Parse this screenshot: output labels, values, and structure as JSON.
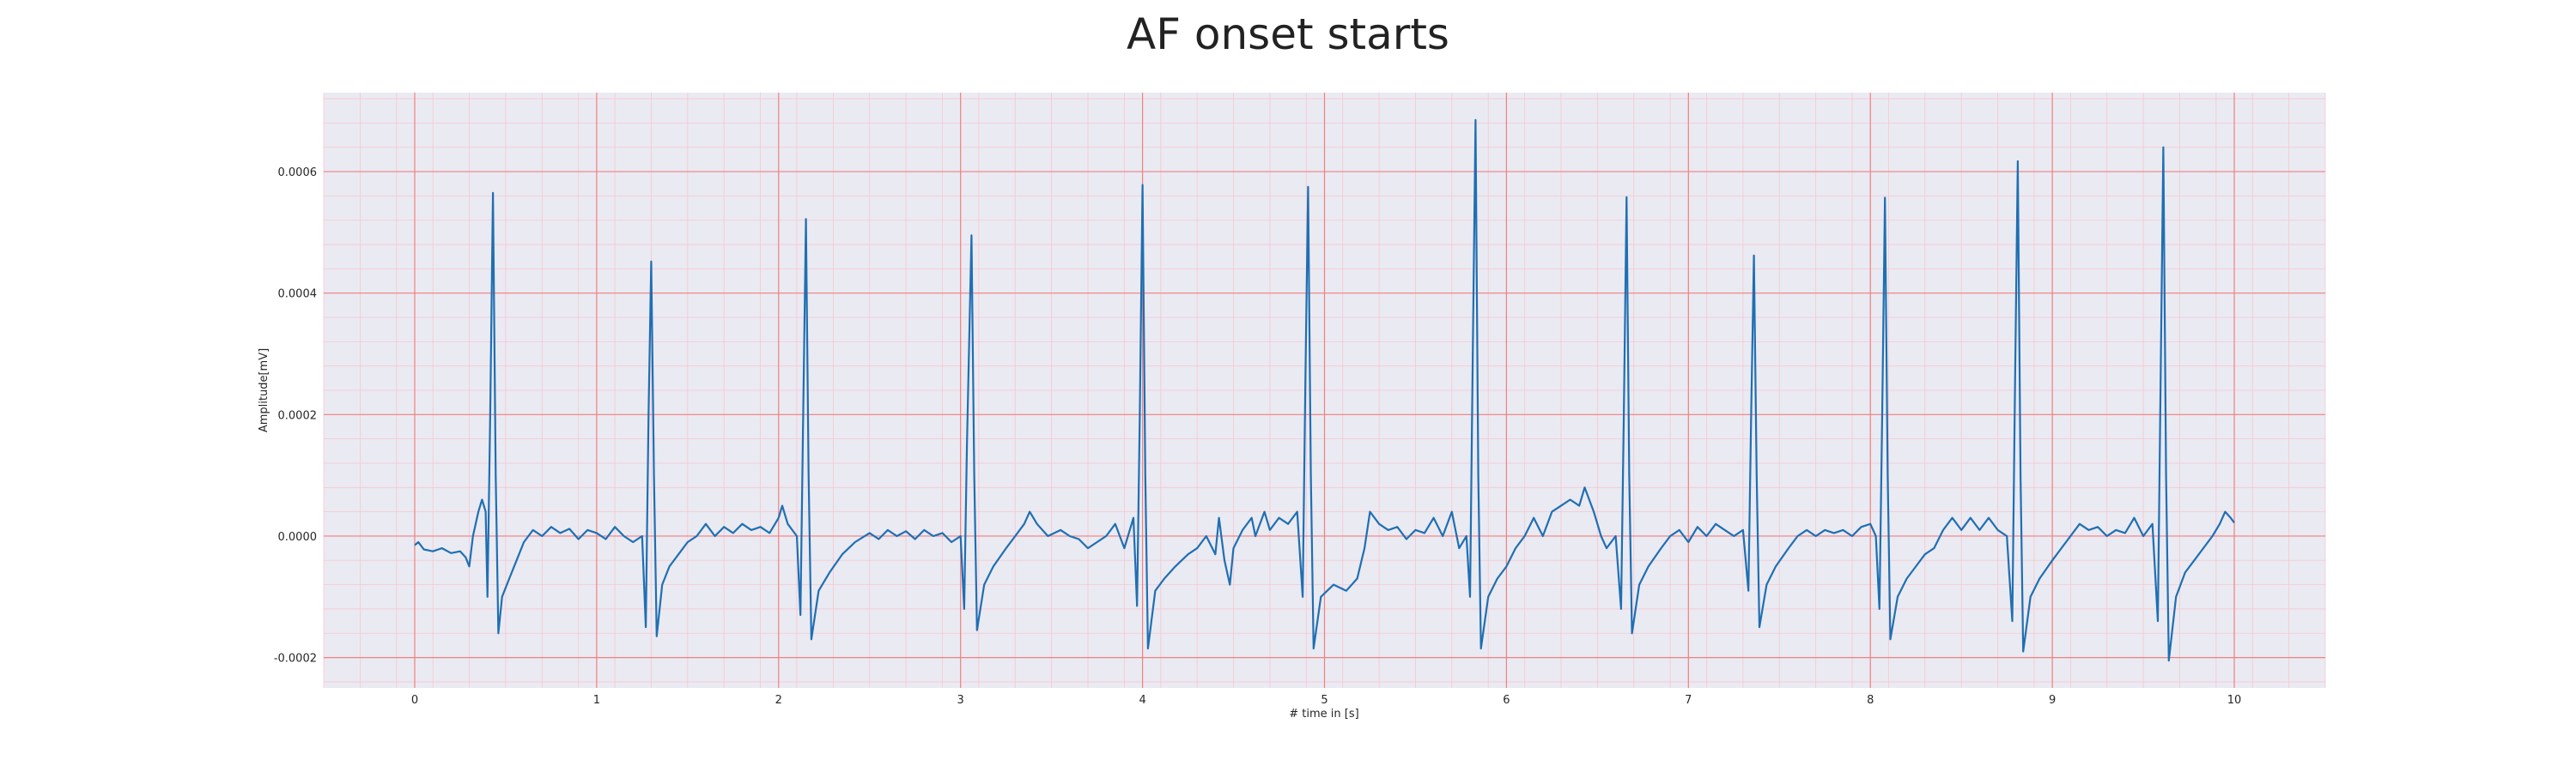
{
  "chart_data": {
    "type": "line",
    "title": "AF onset starts",
    "xlabel": "# time in [s]",
    "ylabel": "Amplitude[mV]",
    "xlim": [
      -0.5,
      10.5
    ],
    "ylim": [
      -0.00025,
      0.00073
    ],
    "x_ticks": [
      0,
      1,
      2,
      3,
      4,
      5,
      6,
      7,
      8,
      9,
      10
    ],
    "x_tick_labels": [
      "0",
      "1",
      "2",
      "3",
      "4",
      "5",
      "6",
      "7",
      "8",
      "9",
      "10"
    ],
    "y_ticks": [
      -0.0002,
      0.0,
      0.0002,
      0.0004,
      0.0006
    ],
    "y_tick_labels": [
      "-0.0002",
      "0.0000",
      "0.0002",
      "0.0004",
      "0.0006"
    ],
    "grid": true,
    "minor_grid": true,
    "colors": {
      "line": "#1f6fb2",
      "plot_background": "#eaeaf2",
      "major_grid": "#f08080",
      "minor_grid": "#f7c6d0"
    },
    "series": [
      {
        "name": "",
        "points": [
          [
            0.0,
            -1.5e-05
          ],
          [
            0.02,
            -1e-05
          ],
          [
            0.05,
            -2.2e-05
          ],
          [
            0.1,
            -2.5e-05
          ],
          [
            0.15,
            -2e-05
          ],
          [
            0.2,
            -2.8e-05
          ],
          [
            0.25,
            -2.5e-05
          ],
          [
            0.28,
            -3.5e-05
          ],
          [
            0.3,
            -5e-05
          ],
          [
            0.32,
            0.0
          ],
          [
            0.35,
            4e-05
          ],
          [
            0.37,
            6e-05
          ],
          [
            0.39,
            4e-05
          ],
          [
            0.4,
            -0.0001
          ],
          [
            0.415,
            0.0002
          ],
          [
            0.43,
            0.000565
          ],
          [
            0.445,
            0.0001
          ],
          [
            0.46,
            -0.00016
          ],
          [
            0.48,
            -0.0001
          ],
          [
            0.52,
            -7e-05
          ],
          [
            0.56,
            -4e-05
          ],
          [
            0.6,
            -1e-05
          ],
          [
            0.65,
            1e-05
          ],
          [
            0.7,
            0.0
          ],
          [
            0.75,
            1.5e-05
          ],
          [
            0.8,
            5e-06
          ],
          [
            0.85,
            1.2e-05
          ],
          [
            0.9,
            -5e-06
          ],
          [
            0.95,
            1e-05
          ],
          [
            1.0,
            5e-06
          ],
          [
            1.05,
            -5e-06
          ],
          [
            1.1,
            1.5e-05
          ],
          [
            1.15,
            0.0
          ],
          [
            1.2,
            -1e-05
          ],
          [
            1.25,
            0.0
          ],
          [
            1.27,
            -0.00015
          ],
          [
            1.285,
            0.0002
          ],
          [
            1.3,
            0.000452
          ],
          [
            1.315,
            0.0001
          ],
          [
            1.33,
            -0.000165
          ],
          [
            1.36,
            -8e-05
          ],
          [
            1.4,
            -5e-05
          ],
          [
            1.45,
            -3e-05
          ],
          [
            1.5,
            -1e-05
          ],
          [
            1.55,
            0.0
          ],
          [
            1.6,
            2e-05
          ],
          [
            1.65,
            0.0
          ],
          [
            1.7,
            1.5e-05
          ],
          [
            1.75,
            5e-06
          ],
          [
            1.8,
            2e-05
          ],
          [
            1.85,
            1e-05
          ],
          [
            1.9,
            1.5e-05
          ],
          [
            1.95,
            5e-06
          ],
          [
            2.0,
            3e-05
          ],
          [
            2.02,
            5e-05
          ],
          [
            2.05,
            2e-05
          ],
          [
            2.1,
            0.0
          ],
          [
            2.12,
            -0.00013
          ],
          [
            2.135,
            0.0002
          ],
          [
            2.15,
            0.000522
          ],
          [
            2.165,
            0.0001
          ],
          [
            2.18,
            -0.00017
          ],
          [
            2.22,
            -9e-05
          ],
          [
            2.28,
            -6e-05
          ],
          [
            2.35,
            -3e-05
          ],
          [
            2.42,
            -1e-05
          ],
          [
            2.5,
            5e-06
          ],
          [
            2.55,
            -5e-06
          ],
          [
            2.6,
            1e-05
          ],
          [
            2.65,
            0.0
          ],
          [
            2.7,
            8e-06
          ],
          [
            2.75,
            -5e-06
          ],
          [
            2.8,
            1e-05
          ],
          [
            2.85,
            0.0
          ],
          [
            2.9,
            5e-06
          ],
          [
            2.95,
            -1e-05
          ],
          [
            3.0,
            0.0
          ],
          [
            3.02,
            -0.00012
          ],
          [
            3.035,
            0.00015
          ],
          [
            3.06,
            0.000495
          ],
          [
            3.075,
            0.0001
          ],
          [
            3.09,
            -0.000155
          ],
          [
            3.13,
            -8e-05
          ],
          [
            3.18,
            -5e-05
          ],
          [
            3.25,
            -2e-05
          ],
          [
            3.3,
            0.0
          ],
          [
            3.35,
            2e-05
          ],
          [
            3.38,
            4e-05
          ],
          [
            3.42,
            2e-05
          ],
          [
            3.48,
            0.0
          ],
          [
            3.55,
            1e-05
          ],
          [
            3.6,
            0.0
          ],
          [
            3.65,
            -5e-06
          ],
          [
            3.7,
            -2e-05
          ],
          [
            3.75,
            -1e-05
          ],
          [
            3.8,
            0.0
          ],
          [
            3.85,
            2e-05
          ],
          [
            3.9,
            -2e-05
          ],
          [
            3.95,
            3e-05
          ],
          [
            3.97,
            -0.000115
          ],
          [
            3.985,
            0.0002
          ],
          [
            4.0,
            0.000578
          ],
          [
            4.015,
            0.0001
          ],
          [
            4.03,
            -0.000185
          ],
          [
            4.07,
            -9e-05
          ],
          [
            4.12,
            -7e-05
          ],
          [
            4.18,
            -5e-05
          ],
          [
            4.25,
            -3e-05
          ],
          [
            4.3,
            -2e-05
          ],
          [
            4.35,
            0.0
          ],
          [
            4.4,
            -3e-05
          ],
          [
            4.42,
            3e-05
          ],
          [
            4.45,
            -4e-05
          ],
          [
            4.48,
            -8e-05
          ],
          [
            4.5,
            -2e-05
          ],
          [
            4.55,
            1e-05
          ],
          [
            4.6,
            3e-05
          ],
          [
            4.62,
            0.0
          ],
          [
            4.67,
            4e-05
          ],
          [
            4.7,
            1e-05
          ],
          [
            4.75,
            3e-05
          ],
          [
            4.8,
            2e-05
          ],
          [
            4.85,
            4e-05
          ],
          [
            4.88,
            -0.0001
          ],
          [
            4.895,
            0.00025
          ],
          [
            4.91,
            0.000575
          ],
          [
            4.925,
            0.0001
          ],
          [
            4.94,
            -0.000185
          ],
          [
            4.98,
            -0.0001
          ],
          [
            5.05,
            -8e-05
          ],
          [
            5.12,
            -9e-05
          ],
          [
            5.18,
            -7e-05
          ],
          [
            5.22,
            -2e-05
          ],
          [
            5.25,
            4e-05
          ],
          [
            5.3,
            2e-05
          ],
          [
            5.35,
            1e-05
          ],
          [
            5.4,
            1.5e-05
          ],
          [
            5.45,
            -5e-06
          ],
          [
            5.5,
            1e-05
          ],
          [
            5.55,
            5e-06
          ],
          [
            5.6,
            3e-05
          ],
          [
            5.65,
            0.0
          ],
          [
            5.7,
            4e-05
          ],
          [
            5.74,
            -2e-05
          ],
          [
            5.78,
            0.0
          ],
          [
            5.8,
            -0.0001
          ],
          [
            5.815,
            0.0003
          ],
          [
            5.83,
            0.000685
          ],
          [
            5.845,
            0.0001
          ],
          [
            5.86,
            -0.000185
          ],
          [
            5.9,
            -0.0001
          ],
          [
            5.95,
            -7e-05
          ],
          [
            6.0,
            -5e-05
          ],
          [
            6.05,
            -2e-05
          ],
          [
            6.1,
            0.0
          ],
          [
            6.15,
            3e-05
          ],
          [
            6.2,
            0.0
          ],
          [
            6.25,
            4e-05
          ],
          [
            6.3,
            5e-05
          ],
          [
            6.35,
            6e-05
          ],
          [
            6.4,
            5e-05
          ],
          [
            6.43,
            8e-05
          ],
          [
            6.48,
            4e-05
          ],
          [
            6.52,
            0.0
          ],
          [
            6.55,
            -2e-05
          ],
          [
            6.6,
            0.0
          ],
          [
            6.63,
            -0.00012
          ],
          [
            6.645,
            0.0002
          ],
          [
            6.66,
            0.000558
          ],
          [
            6.675,
            0.0001
          ],
          [
            6.69,
            -0.00016
          ],
          [
            6.73,
            -8e-05
          ],
          [
            6.78,
            -5e-05
          ],
          [
            6.85,
            -2e-05
          ],
          [
            6.9,
            0.0
          ],
          [
            6.95,
            1e-05
          ],
          [
            7.0,
            -1e-05
          ],
          [
            7.05,
            1.5e-05
          ],
          [
            7.1,
            0.0
          ],
          [
            7.15,
            2e-05
          ],
          [
            7.2,
            1e-05
          ],
          [
            7.25,
            0.0
          ],
          [
            7.3,
            1e-05
          ],
          [
            7.33,
            -9e-05
          ],
          [
            7.345,
            0.0002
          ],
          [
            7.36,
            0.000462
          ],
          [
            7.375,
            0.0001
          ],
          [
            7.39,
            -0.00015
          ],
          [
            7.43,
            -8e-05
          ],
          [
            7.48,
            -5e-05
          ],
          [
            7.55,
            -2e-05
          ],
          [
            7.6,
            0.0
          ],
          [
            7.65,
            1e-05
          ],
          [
            7.7,
            0.0
          ],
          [
            7.75,
            1e-05
          ],
          [
            7.8,
            5e-06
          ],
          [
            7.85,
            1e-05
          ],
          [
            7.9,
            0.0
          ],
          [
            7.95,
            1.5e-05
          ],
          [
            8.0,
            2e-05
          ],
          [
            8.03,
            0.0
          ],
          [
            8.05,
            -0.00012
          ],
          [
            8.065,
            0.0002
          ],
          [
            8.08,
            0.000557
          ],
          [
            8.095,
            0.0001
          ],
          [
            8.11,
            -0.00017
          ],
          [
            8.15,
            -0.0001
          ],
          [
            8.2,
            -7e-05
          ],
          [
            8.25,
            -5e-05
          ],
          [
            8.3,
            -3e-05
          ],
          [
            8.35,
            -2e-05
          ],
          [
            8.4,
            1e-05
          ],
          [
            8.45,
            3e-05
          ],
          [
            8.5,
            1e-05
          ],
          [
            8.55,
            3e-05
          ],
          [
            8.6,
            1e-05
          ],
          [
            8.65,
            3e-05
          ],
          [
            8.7,
            1e-05
          ],
          [
            8.75,
            0.0
          ],
          [
            8.78,
            -0.00014
          ],
          [
            8.795,
            0.00025
          ],
          [
            8.81,
            0.000617
          ],
          [
            8.825,
            0.0001
          ],
          [
            8.84,
            -0.00019
          ],
          [
            8.88,
            -0.0001
          ],
          [
            8.93,
            -7e-05
          ],
          [
            9.0,
            -4e-05
          ],
          [
            9.05,
            -2e-05
          ],
          [
            9.1,
            0.0
          ],
          [
            9.15,
            2e-05
          ],
          [
            9.2,
            1e-05
          ],
          [
            9.25,
            1.5e-05
          ],
          [
            9.3,
            0.0
          ],
          [
            9.35,
            1e-05
          ],
          [
            9.4,
            5e-06
          ],
          [
            9.45,
            3e-05
          ],
          [
            9.5,
            0.0
          ],
          [
            9.55,
            2e-05
          ],
          [
            9.58,
            -0.00014
          ],
          [
            9.595,
            0.00025
          ],
          [
            9.61,
            0.00064
          ],
          [
            9.625,
            0.0001
          ],
          [
            9.64,
            -0.000205
          ],
          [
            9.68,
            -0.0001
          ],
          [
            9.73,
            -6e-05
          ],
          [
            9.78,
            -4e-05
          ],
          [
            9.83,
            -2e-05
          ],
          [
            9.88,
            0.0
          ],
          [
            9.92,
            2e-05
          ],
          [
            9.95,
            4e-05
          ],
          [
            9.98,
            3e-05
          ],
          [
            10.0,
            2.2e-05
          ]
        ]
      }
    ]
  }
}
